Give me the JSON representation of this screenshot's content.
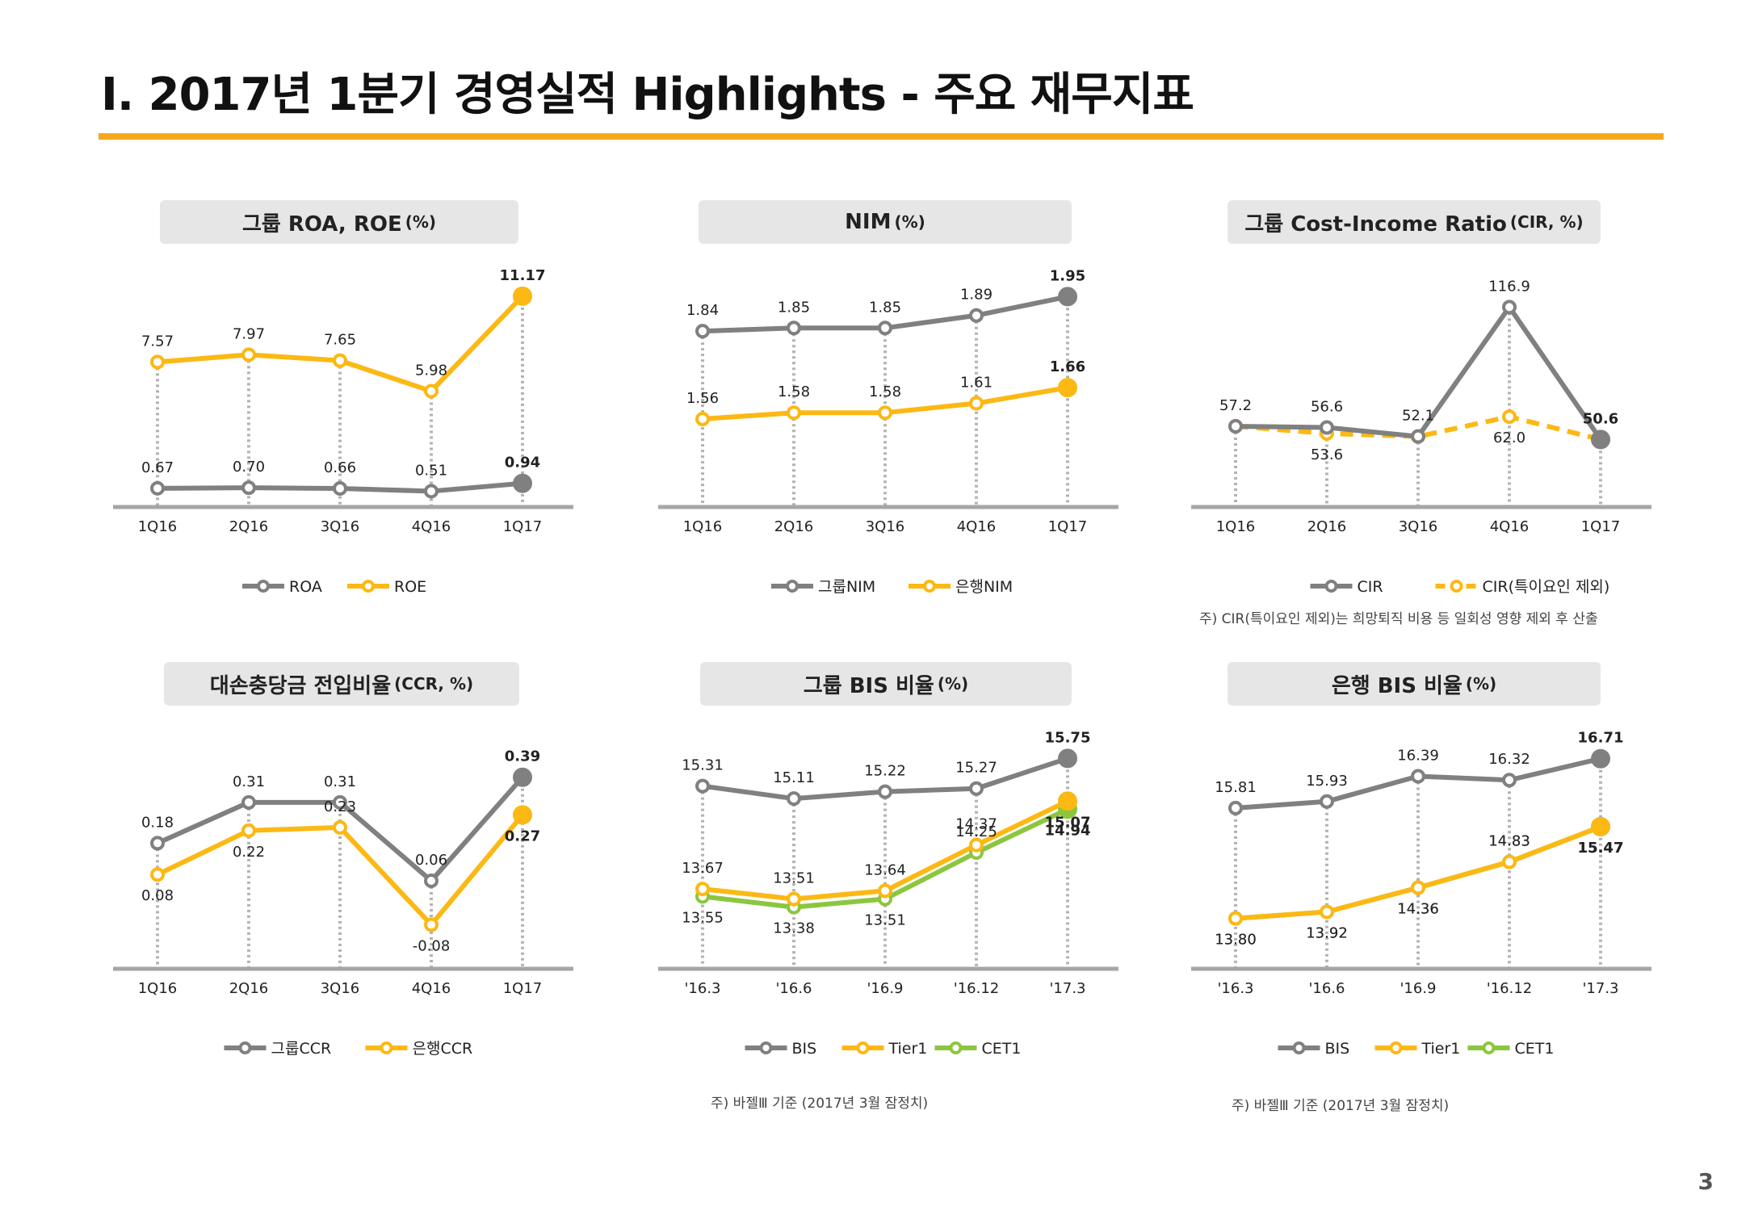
{
  "header": {
    "title": "Ⅰ. 2017년 1분기 경영실적 Highlights - 주요 재무지표"
  },
  "page_number": "3",
  "colors": {
    "accent": "#f5a81c",
    "gray_series": "#808080",
    "yellow_series": "#fcb813",
    "green_series": "#8cc63f"
  },
  "chart_data": [
    {
      "id": "roa-roe",
      "type": "line",
      "title": "그룹 ROA, ROE",
      "title_unit": "(%)",
      "categories": [
        "1Q16",
        "2Q16",
        "3Q16",
        "4Q16",
        "1Q17"
      ],
      "ylim": [
        0,
        12
      ],
      "series": [
        {
          "name": "ROA",
          "color": "#808080",
          "style": "solid",
          "values": [
            0.67,
            0.7,
            0.66,
            0.51,
            0.94
          ],
          "labels": [
            "0.67",
            "0.70",
            "0.66",
            "0.51",
            "0.94"
          ]
        },
        {
          "name": "ROE",
          "color": "#fcb813",
          "style": "solid",
          "values": [
            7.57,
            7.97,
            7.65,
            5.98,
            11.17
          ],
          "labels": [
            "7.57",
            "7.97",
            "7.65",
            "5.98",
            "11.17"
          ]
        }
      ]
    },
    {
      "id": "nim",
      "type": "line",
      "title": "NIM",
      "title_unit": "(%)",
      "categories": [
        "1Q16",
        "2Q16",
        "3Q16",
        "4Q16",
        "1Q17"
      ],
      "ylim": [
        1.3,
        2.0
      ],
      "series": [
        {
          "name": "그룹NIM",
          "color": "#808080",
          "style": "solid",
          "values": [
            1.84,
            1.85,
            1.85,
            1.89,
            1.95
          ],
          "labels": [
            "1.84",
            "1.85",
            "1.85",
            "1.89",
            "1.95"
          ]
        },
        {
          "name": "은행NIM",
          "color": "#fcb813",
          "style": "solid",
          "values": [
            1.56,
            1.58,
            1.58,
            1.61,
            1.66
          ],
          "labels": [
            "1.56",
            "1.58",
            "1.58",
            "1.61",
            "1.66"
          ]
        }
      ]
    },
    {
      "id": "cir",
      "type": "line",
      "title": "그룹 Cost-Income Ratio",
      "title_unit": "(CIR, %)",
      "categories": [
        "1Q16",
        "2Q16",
        "3Q16",
        "4Q16",
        "1Q17"
      ],
      "ylim": [
        20,
        130
      ],
      "series": [
        {
          "name": "CIR",
          "color": "#808080",
          "style": "solid",
          "values": [
            57.2,
            56.6,
            52.1,
            116.9,
            50.6
          ],
          "labels": [
            "57.2",
            "56.6",
            "52.1",
            "116.9",
            "50.6"
          ]
        },
        {
          "name": "CIR(특이요인 제외)",
          "color": "#fcb813",
          "style": "dashed",
          "values": [
            57.2,
            53.6,
            52.1,
            62.0,
            50.6
          ],
          "labels": [
            "",
            "53.6",
            "",
            "62.0",
            ""
          ]
        }
      ],
      "note": "주) CIR(특이요인 제외)는 희망퇴직 비용 등 일회성 영향 제외 후 산출"
    },
    {
      "id": "ccr",
      "type": "line",
      "title": "대손충당금 전입비율",
      "title_unit": "(CCR, %)",
      "categories": [
        "1Q16",
        "2Q16",
        "3Q16",
        "4Q16",
        "1Q17"
      ],
      "ylim": [
        -0.2,
        0.5
      ],
      "series": [
        {
          "name": "그룹CCR",
          "color": "#808080",
          "style": "solid",
          "values": [
            0.18,
            0.31,
            0.31,
            0.06,
            0.39
          ],
          "labels": [
            "0.18",
            "0.31",
            "0.31",
            "0.06",
            "0.39"
          ]
        },
        {
          "name": "은행CCR",
          "color": "#fcb813",
          "style": "solid",
          "values": [
            0.08,
            0.22,
            0.23,
            -0.08,
            0.27
          ],
          "labels": [
            "0.08",
            "0.22",
            "0.23",
            "-0.08",
            "0.27"
          ]
        }
      ]
    },
    {
      "id": "group-bis",
      "type": "line",
      "title": "그룹 BIS 비율",
      "title_unit": "(%)",
      "categories": [
        "'16.3",
        "'16.6",
        "'16.9",
        "'16.12",
        "'17.3"
      ],
      "ylim": [
        12.5,
        16.0
      ],
      "series": [
        {
          "name": "BIS",
          "color": "#808080",
          "style": "solid",
          "values": [
            15.31,
            15.11,
            15.22,
            15.27,
            15.75
          ],
          "labels": [
            "15.31",
            "15.11",
            "15.22",
            "15.27",
            "15.75"
          ]
        },
        {
          "name": "Tier1",
          "color": "#fcb813",
          "style": "solid",
          "values": [
            13.67,
            13.51,
            13.64,
            14.37,
            15.07
          ],
          "labels": [
            "13.67",
            "13.51",
            "13.64",
            "14.37",
            "15.07"
          ]
        },
        {
          "name": "CET1",
          "color": "#8cc63f",
          "style": "solid",
          "values": [
            13.55,
            13.38,
            13.51,
            14.25,
            14.94
          ],
          "labels": [
            "13.55",
            "13.38",
            "13.51",
            "14.25",
            "14.94"
          ]
        }
      ],
      "note": "주) 바젤Ⅲ 기준 (2017년 3월 잠정치)"
    },
    {
      "id": "bank-bis",
      "type": "line",
      "title": "은행 BIS 비율",
      "title_unit": "(%)",
      "categories": [
        "'16.3",
        "'16.6",
        "'16.9",
        "'16.12",
        "'17.3"
      ],
      "ylim": [
        13.0,
        17.0
      ],
      "series": [
        {
          "name": "BIS",
          "color": "#808080",
          "style": "solid",
          "values": [
            15.81,
            15.93,
            16.39,
            16.32,
            16.71
          ],
          "labels": [
            "15.81",
            "15.93",
            "16.39",
            "16.32",
            "16.71"
          ]
        },
        {
          "name": "Tier1",
          "color": "#fcb813",
          "style": "solid",
          "values": [
            13.8,
            13.92,
            14.36,
            14.83,
            15.47
          ],
          "labels": [
            "13.80",
            "13.92",
            "14.36",
            "14.83",
            "15.47"
          ]
        },
        {
          "name": "CET1",
          "color": "#8cc63f",
          "style": "solid",
          "values": [
            13.8,
            13.92,
            14.36,
            14.83,
            15.47
          ],
          "labels": [
            "13.80",
            "13.92",
            "14.36",
            "14.83",
            "15.47"
          ]
        }
      ],
      "note": "주) 바젤Ⅲ 기준 (2017년 3월 잠정치)"
    }
  ]
}
